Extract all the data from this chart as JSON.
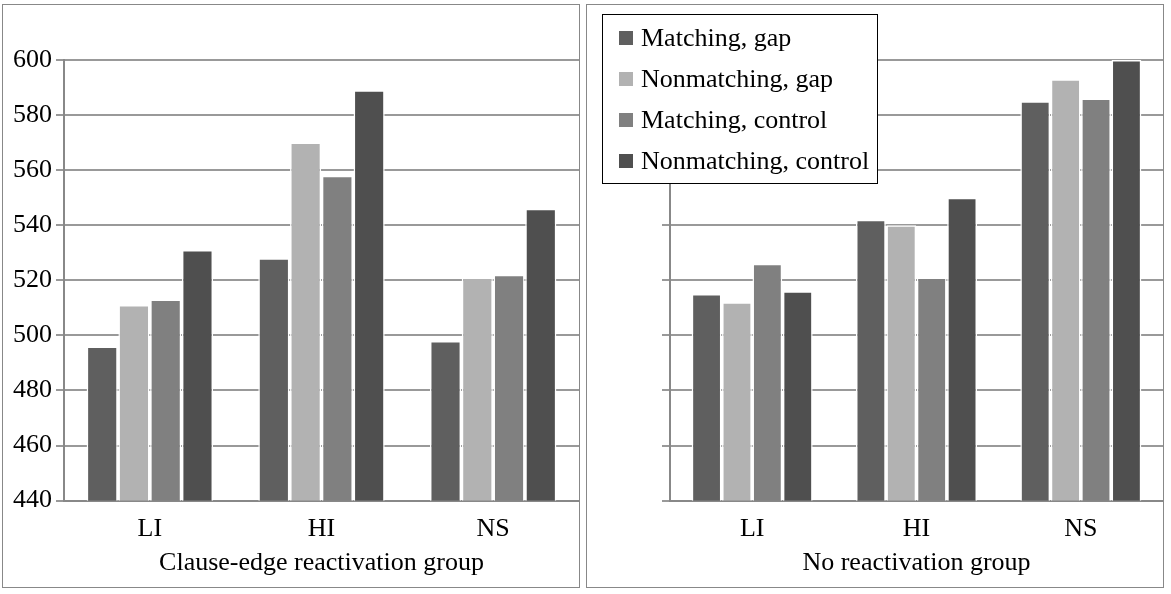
{
  "chart_data": [
    {
      "type": "bar",
      "xlabel": "Clause-edge reactivation group",
      "categories": [
        "LI",
        "HI",
        "NS"
      ],
      "series": [
        {
          "color": "#5f5f5f",
          "values": [
            496,
            528,
            498
          ]
        },
        {
          "color": "#b2b2b2",
          "values": [
            511,
            570,
            521
          ]
        },
        {
          "color": "#808080",
          "values": [
            513,
            558,
            522
          ]
        },
        {
          "color": "#4f4f4f",
          "values": [
            531,
            589,
            546
          ]
        }
      ],
      "ylim": [
        440,
        600
      ],
      "yticks": [
        440,
        460,
        480,
        500,
        520,
        540,
        560,
        580,
        600
      ],
      "grid": "y",
      "legend": false
    },
    {
      "type": "bar",
      "xlabel": "No reactivation group",
      "categories": [
        "LI",
        "HI",
        "NS"
      ],
      "series": [
        {
          "name": "Matching, gap",
          "color": "#5f5f5f",
          "values": [
            515,
            542,
            585
          ]
        },
        {
          "name": "Nonmatching, gap",
          "color": "#b2b2b2",
          "values": [
            512,
            540,
            593
          ]
        },
        {
          "name": "Matching, control",
          "color": "#808080",
          "values": [
            526,
            521,
            586
          ]
        },
        {
          "name": "Nonmatching, control",
          "color": "#4f4f4f",
          "values": [
            516,
            550,
            600
          ]
        }
      ],
      "ylim": [
        440,
        600
      ],
      "yticks": [
        440,
        460,
        480,
        500,
        520,
        540,
        560,
        580,
        600
      ],
      "grid": "y",
      "legend": "top left",
      "tick_labels": "x"
    }
  ]
}
